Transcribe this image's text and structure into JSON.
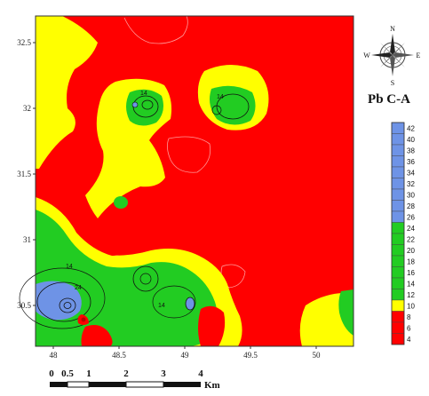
{
  "map": {
    "y_ticks": [
      "32.5",
      "32",
      "31.5",
      "31",
      "30.5"
    ],
    "x_ticks": [
      "48",
      "48.5",
      "49",
      "49.5",
      "50"
    ],
    "contour_labels": [
      "14",
      "14",
      "14",
      "24",
      "14"
    ]
  },
  "colors": {
    "red": "#ff0000",
    "yellow": "#ffff00",
    "green": "#22cc22",
    "blue": "#6e93e6",
    "dark_red": "#bb0000"
  },
  "compass": {
    "n": "N",
    "s": "S",
    "e": "E",
    "w": "W"
  },
  "legend": {
    "title": "Pb C-A",
    "labels": [
      "42",
      "40",
      "38",
      "36",
      "34",
      "32",
      "30",
      "28",
      "26",
      "24",
      "22",
      "20",
      "18",
      "16",
      "14",
      "12",
      "10",
      "8",
      "6",
      "4"
    ]
  },
  "scale_bar": {
    "labels": [
      "0",
      "0.5",
      "1",
      "2",
      "3",
      "4"
    ],
    "unit": "Km"
  }
}
